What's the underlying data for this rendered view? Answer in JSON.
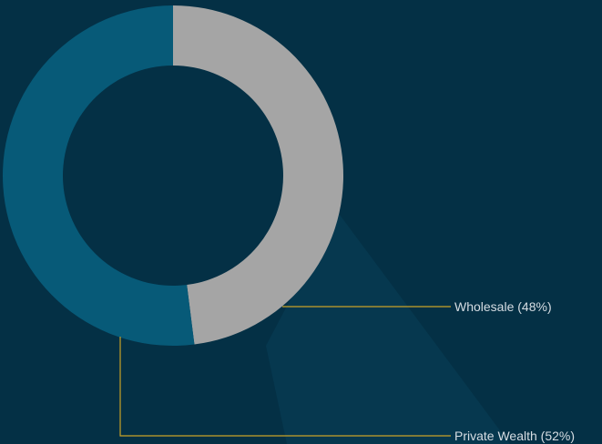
{
  "chart_data": {
    "type": "pie",
    "variant": "donut",
    "series": [
      {
        "name": "Wholesale",
        "value": 48,
        "label": "Wholesale (48%)",
        "color": "#a5a5a5"
      },
      {
        "name": "Private Wealth",
        "value": 52,
        "label": "Private Wealth (52%)",
        "color": "#075a78"
      }
    ],
    "legend": "none",
    "grid": false
  },
  "colors": {
    "background": "#043045",
    "shadow": "#06384f",
    "leader_line": "#c9a227",
    "label_text": "#d6dde3"
  }
}
